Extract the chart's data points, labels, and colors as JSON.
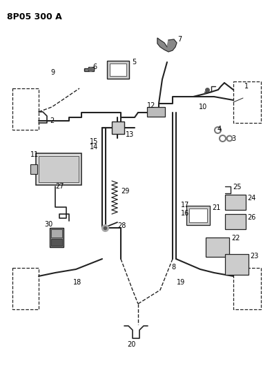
{
  "title": "8P05 300 A",
  "bg_color": "#ffffff",
  "lc": "#222222",
  "figsize": [
    3.94,
    5.33
  ],
  "dpi": 100
}
